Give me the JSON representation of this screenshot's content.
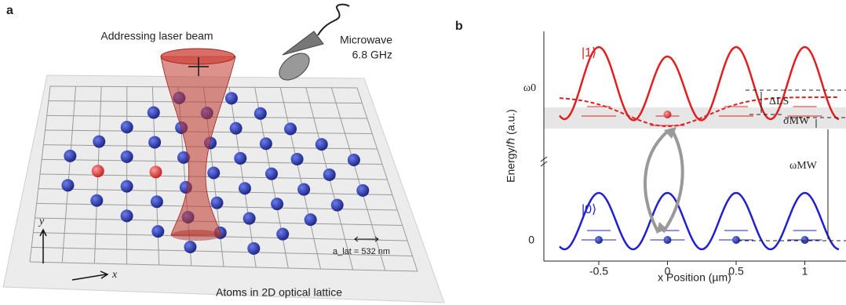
{
  "panel_a": {
    "label": "a",
    "beam_label": "Addressing laser beam",
    "microwave_label": "Microwave",
    "microwave_freq": "6.8 GHz",
    "y_axis": "y",
    "x_axis": "x",
    "lattice_constant": "a_lat = 532 nm",
    "caption": "Atoms in 2D optical lattice"
  },
  "panel_b": {
    "label": "b",
    "state_upper": "|1⟩",
    "state_lower": "|0⟩",
    "omega0": "ω0",
    "delta_ls": "ΔLS",
    "sigma_mw": "σMW",
    "omega_mw": "ωMW",
    "ylabel": "Energy/ℏ (a.u.)",
    "y_zero": "0",
    "xlabel": "x Position (µm)",
    "xlim": [
      -0.9,
      1.3
    ],
    "xticks": [
      -0.5,
      0,
      0.5,
      1
    ]
  }
}
